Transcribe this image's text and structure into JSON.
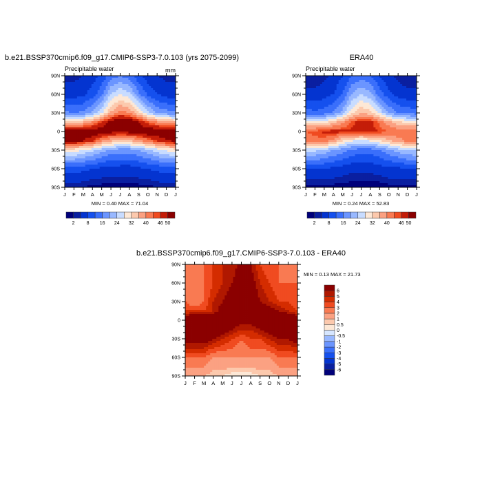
{
  "chart_data": [
    {
      "type": "heatmap",
      "title": "b.e21.BSSP370cmip6.f09_g17.CMIP6-SSP3-7.0.103 (yrs 2075-2099)",
      "left_label": "Precipitable water",
      "units": "mm",
      "stats": "MIN =  0.40 MAX =  71.04",
      "x_ticks": [
        "J",
        "F",
        "M",
        "A",
        "M",
        "J",
        "J",
        "A",
        "S",
        "O",
        "N",
        "D",
        "J"
      ],
      "y_ticks": [
        "90N",
        "60N",
        "30N",
        "0",
        "30S",
        "60S",
        "90S"
      ],
      "lats": [
        90,
        60,
        30,
        15,
        0,
        -15,
        -30,
        -60,
        -90
      ],
      "values": [
        [
          3,
          3,
          4,
          6,
          9,
          14,
          16,
          14,
          9,
          6,
          4,
          3,
          3
        ],
        [
          6,
          6,
          7,
          10,
          15,
          24,
          28,
          25,
          17,
          11,
          8,
          6,
          6
        ],
        [
          17,
          16,
          17,
          21,
          27,
          37,
          42,
          40,
          33,
          25,
          20,
          18,
          17
        ],
        [
          36,
          35,
          36,
          40,
          46,
          52,
          56,
          55,
          50,
          44,
          40,
          37,
          36
        ],
        [
          54,
          54,
          54,
          54,
          53,
          52,
          51,
          52,
          53,
          54,
          54,
          54,
          54
        ],
        [
          51,
          51,
          50,
          46,
          40,
          36,
          34,
          35,
          38,
          42,
          46,
          49,
          51
        ],
        [
          30,
          30,
          28,
          25,
          22,
          19,
          18,
          18,
          20,
          23,
          26,
          29,
          30
        ],
        [
          10,
          10,
          9,
          8,
          7,
          6,
          6,
          6,
          7,
          8,
          9,
          10,
          10
        ],
        [
          2,
          2,
          2,
          1,
          1,
          1,
          1,
          1,
          1,
          1,
          2,
          2,
          2
        ]
      ],
      "levels": [
        2,
        4,
        8,
        12,
        16,
        20,
        24,
        28,
        32,
        36,
        40,
        44,
        46,
        50
      ],
      "colorbar_labels": [
        "2",
        "8",
        "16",
        "24",
        "32",
        "40",
        "46",
        "50"
      ],
      "colors": [
        "#00007a",
        "#0a1fa0",
        "#0434d0",
        "#1550ee",
        "#3a6ffb",
        "#6b95ff",
        "#98b8ff",
        "#c8dcff",
        "#fde8d6",
        "#fcc9ad",
        "#fba182",
        "#f97a52",
        "#f04b20",
        "#c41d08",
        "#8b0000"
      ]
    },
    {
      "type": "heatmap",
      "title": "ERA40",
      "left_label": "Precipitable water",
      "stats": "MIN =  0.24 MAX =  52.83",
      "x_ticks": [
        "J",
        "F",
        "M",
        "A",
        "M",
        "J",
        "J",
        "A",
        "S",
        "O",
        "N",
        "D",
        "J"
      ],
      "y_ticks": [
        "90N",
        "60N",
        "30N",
        "0",
        "30S",
        "60S",
        "90S"
      ],
      "lats": [
        90,
        60,
        30,
        15,
        0,
        -15,
        -30,
        -60,
        -90
      ],
      "values": [
        [
          2,
          2,
          3,
          5,
          8,
          12,
          14,
          12,
          8,
          5,
          3,
          2,
          2
        ],
        [
          5,
          5,
          6,
          8,
          12,
          20,
          24,
          21,
          14,
          9,
          6,
          5,
          5
        ],
        [
          14,
          13,
          14,
          17,
          22,
          31,
          36,
          34,
          27,
          20,
          16,
          15,
          14
        ],
        [
          30,
          29,
          30,
          34,
          39,
          45,
          48,
          47,
          43,
          37,
          33,
          31,
          30
        ],
        [
          44,
          45,
          47,
          48,
          47,
          47,
          47,
          47,
          46,
          44,
          43,
          44,
          44
        ],
        [
          42,
          43,
          42,
          38,
          32,
          28,
          27,
          28,
          31,
          35,
          38,
          41,
          42
        ],
        [
          25,
          25,
          23,
          20,
          18,
          15,
          14,
          14,
          16,
          19,
          22,
          24,
          25
        ],
        [
          8,
          8,
          8,
          7,
          6,
          5,
          5,
          5,
          6,
          7,
          7,
          8,
          8
        ],
        [
          1,
          1,
          1,
          1,
          1,
          0.5,
          0.5,
          0.5,
          0.5,
          1,
          1,
          1,
          1
        ]
      ],
      "levels": [
        2,
        4,
        8,
        12,
        16,
        20,
        24,
        28,
        32,
        36,
        40,
        44,
        46,
        50
      ],
      "colorbar_labels": [
        "2",
        "8",
        "16",
        "24",
        "32",
        "40",
        "46",
        "50"
      ],
      "colors": [
        "#00007a",
        "#0a1fa0",
        "#0434d0",
        "#1550ee",
        "#3a6ffb",
        "#6b95ff",
        "#98b8ff",
        "#c8dcff",
        "#fde8d6",
        "#fcc9ad",
        "#fba182",
        "#f97a52",
        "#f04b20",
        "#c41d08",
        "#8b0000"
      ]
    },
    {
      "type": "heatmap",
      "title": "b.e21.BSSP370cmip6.f09_g17.CMIP6-SSP3-7.0.103 - ERA40",
      "stats": "MIN =  0.13 MAX =  21.73",
      "x_ticks": [
        "J",
        "F",
        "M",
        "A",
        "M",
        "J",
        "J",
        "A",
        "S",
        "O",
        "N",
        "D",
        "J"
      ],
      "y_ticks": [
        "90N",
        "60N",
        "30N",
        "0",
        "30S",
        "60S",
        "90S"
      ],
      "lats": [
        90,
        60,
        30,
        15,
        0,
        -15,
        -30,
        -60,
        -90
      ],
      "values": [
        [
          2,
          2,
          3,
          4,
          5,
          5,
          7,
          6,
          4,
          3,
          3,
          2,
          2
        ],
        [
          2,
          2,
          3,
          4,
          5,
          6,
          7,
          7,
          5,
          4,
          3,
          3,
          3
        ],
        [
          3,
          2,
          3,
          5,
          6,
          7,
          8,
          8,
          6,
          5,
          4,
          4,
          3
        ],
        [
          4,
          4,
          4,
          5,
          7,
          8,
          9,
          9,
          8,
          7,
          6,
          5,
          4
        ],
        [
          8,
          9,
          9,
          9,
          8,
          7,
          7,
          7,
          8,
          9,
          9,
          9,
          8
        ],
        [
          9,
          9,
          9,
          8,
          7,
          6,
          5,
          5,
          6,
          7,
          8,
          8,
          9
        ],
        [
          7,
          7,
          7,
          6,
          5,
          4,
          3,
          4,
          4,
          5,
          6,
          6,
          7
        ],
        [
          3,
          3,
          3,
          2,
          2,
          2,
          2,
          2,
          2,
          2,
          3,
          3,
          3
        ],
        [
          1,
          1,
          1,
          0.5,
          0.5,
          0.2,
          0.2,
          0.2,
          0.5,
          0.5,
          1,
          1,
          1
        ]
      ],
      "levels": [
        -6,
        -5,
        -4,
        -3,
        -2,
        -1,
        -0.5,
        0,
        0.5,
        1,
        2,
        3,
        4,
        5,
        6
      ],
      "colorbar_labels": [
        "-6",
        "-5",
        "-4",
        "-3",
        "-2",
        "-1",
        "-0.5",
        "0",
        "0.5",
        "1",
        "2",
        "3",
        "4",
        "5",
        "6"
      ],
      "colors": [
        "#00007a",
        "#0a1fa0",
        "#0434d0",
        "#1550ee",
        "#3a6ffb",
        "#6b95ff",
        "#98b8ff",
        "#d6e6ff",
        "#fde8d6",
        "#fcc9ad",
        "#fba182",
        "#f97a52",
        "#f04b20",
        "#d42c00",
        "#b01800",
        "#8b0000"
      ]
    }
  ]
}
